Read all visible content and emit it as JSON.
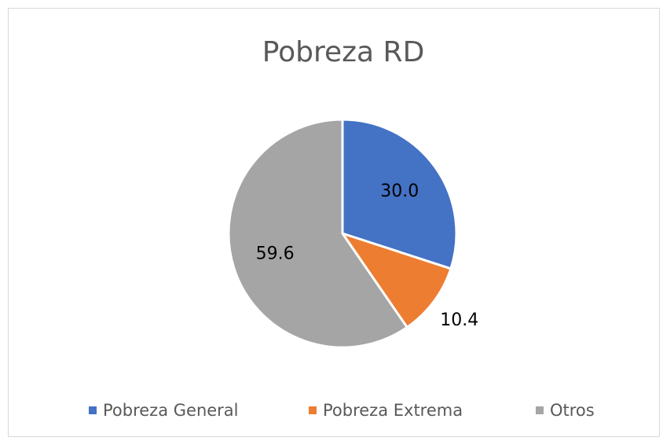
{
  "chart_data": {
    "type": "pie",
    "title": "Pobreza RD",
    "categories": [
      "Pobreza General",
      "Pobreza Extrema",
      "Otros"
    ],
    "values": [
      30.0,
      10.4,
      59.6
    ],
    "value_labels": [
      "30.0",
      "10.4",
      "59.6"
    ],
    "colors": [
      "#4472c4",
      "#ed7d31",
      "#a5a5a5"
    ],
    "legend": "bottom"
  }
}
